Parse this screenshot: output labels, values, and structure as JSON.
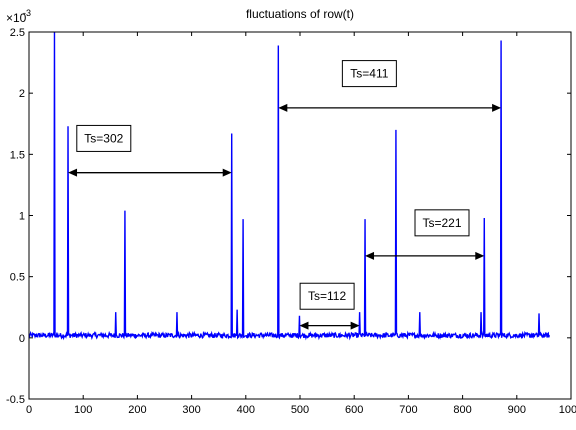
{
  "chart_data": {
    "type": "line",
    "title": "fluctuations of  row(t)",
    "xlabel": "",
    "ylabel": "",
    "xlim": [
      0,
      1000
    ],
    "ylim": [
      -0.0005,
      0.0025
    ],
    "y_exponent_label": "×10",
    "y_exponent_power": "-3",
    "x_ticks": [
      0,
      100,
      200,
      300,
      400,
      500,
      600,
      700,
      800,
      900,
      1000
    ],
    "x_tick_labels": [
      "0",
      "100",
      "200",
      "300",
      "400",
      "500",
      "600",
      "700",
      "800",
      "900",
      "1000"
    ],
    "y_ticks": [
      -0.0005,
      0,
      0.0005,
      0.001,
      0.0015,
      0.002,
      0.0025
    ],
    "y_tick_labels": [
      "-0.5",
      "0",
      "0.5",
      "1",
      "1.5",
      "2",
      "2.5"
    ],
    "grid": false,
    "series_color": "#0000ff",
    "baseline": 2e-05,
    "baseline_noise": 2e-05,
    "n_points": 960,
    "spikes": [
      {
        "x": 47,
        "y": 0.0025
      },
      {
        "x": 72,
        "y": 0.00173
      },
      {
        "x": 160,
        "y": 0.00021
      },
      {
        "x": 177,
        "y": 0.00104
      },
      {
        "x": 273,
        "y": 0.00021
      },
      {
        "x": 374,
        "y": 0.00167
      },
      {
        "x": 384,
        "y": 0.00023
      },
      {
        "x": 395,
        "y": 0.00097
      },
      {
        "x": 460,
        "y": 0.00239
      },
      {
        "x": 499,
        "y": 0.00018
      },
      {
        "x": 610,
        "y": 0.00021
      },
      {
        "x": 620,
        "y": 0.00097
      },
      {
        "x": 677,
        "y": 0.0017
      },
      {
        "x": 721,
        "y": 0.00021
      },
      {
        "x": 834,
        "y": 0.00021
      },
      {
        "x": 840,
        "y": 0.00098
      },
      {
        "x": 871,
        "y": 0.00243
      },
      {
        "x": 941,
        "y": 0.0002
      }
    ],
    "annotations": [
      {
        "text": "Ts=302",
        "x1": 72,
        "x2": 374,
        "y": 0.00135,
        "box_x": 138,
        "box_y": 0.00163
      },
      {
        "text": "Ts=411",
        "x1": 460,
        "x2": 871,
        "y": 0.00188,
        "box_x": 628,
        "box_y": 0.00216
      },
      {
        "text": "Ts=112",
        "x1": 499,
        "x2": 610,
        "y": 0.0001,
        "box_x": 550,
        "box_y": 0.00034
      },
      {
        "text": "Ts=221",
        "x1": 620,
        "x2": 840,
        "y": 0.00067,
        "box_x": 762,
        "box_y": 0.00094
      }
    ]
  }
}
